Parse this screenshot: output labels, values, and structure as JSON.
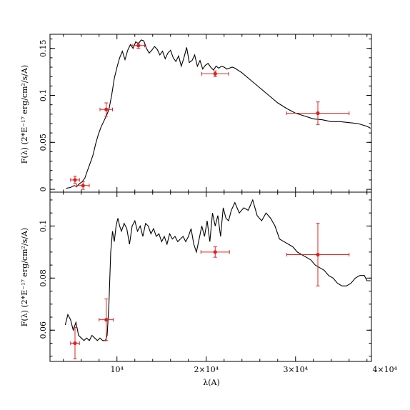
{
  "chart_data": [
    {
      "type": "line",
      "panel": "top",
      "ylabel": "F(λ) (2*E⁻¹⁷ erg/cm²/s/A)",
      "xlim": [
        2500,
        38500
      ],
      "ylim": [
        -0.003,
        0.165
      ],
      "x_ticks": [
        10000,
        20000,
        30000,
        40000
      ],
      "y_ticks": [
        0,
        0.05,
        0.1,
        0.15
      ],
      "y_tick_labels": [
        "0",
        "0.05",
        "0.1",
        "0.15"
      ],
      "line_color": "#000000",
      "model_spectrum": {
        "x": [
          4300,
          4800,
          5200,
          5500,
          5800,
          6100,
          6400,
          6700,
          7000,
          7300,
          7600,
          7900,
          8200,
          8500,
          8800,
          9100,
          9400,
          9700,
          10000,
          10300,
          10600,
          10900,
          11200,
          11500,
          11800,
          12100,
          12400,
          12700,
          13000,
          13300,
          13600,
          13900,
          14200,
          14500,
          14800,
          15100,
          15400,
          15700,
          16000,
          16300,
          16600,
          16900,
          17200,
          17500,
          17800,
          18100,
          18400,
          18700,
          19000,
          19300,
          19600,
          19900,
          20200,
          20500,
          20800,
          21100,
          21400,
          21700,
          22000,
          22300,
          22600,
          22900,
          23200,
          24000,
          25000,
          26000,
          27000,
          28000,
          29000,
          30000,
          31000,
          32000,
          33000,
          34000,
          35000,
          36000,
          37000,
          38000,
          38400
        ],
        "y": [
          0.001,
          0.002,
          0.004,
          0.003,
          0.006,
          0.008,
          0.012,
          0.02,
          0.028,
          0.036,
          0.048,
          0.058,
          0.066,
          0.072,
          0.078,
          0.085,
          0.1,
          0.118,
          0.13,
          0.14,
          0.147,
          0.138,
          0.148,
          0.154,
          0.15,
          0.157,
          0.155,
          0.159,
          0.158,
          0.15,
          0.145,
          0.148,
          0.152,
          0.149,
          0.143,
          0.147,
          0.139,
          0.145,
          0.148,
          0.14,
          0.136,
          0.142,
          0.131,
          0.14,
          0.151,
          0.135,
          0.137,
          0.143,
          0.131,
          0.137,
          0.128,
          0.132,
          0.134,
          0.13,
          0.127,
          0.131,
          0.129,
          0.131,
          0.13,
          0.128,
          0.129,
          0.13,
          0.129,
          0.124,
          0.116,
          0.108,
          0.1,
          0.092,
          0.086,
          0.081,
          0.078,
          0.075,
          0.074,
          0.072,
          0.072,
          0.071,
          0.07,
          0.067,
          0.065
        ]
      },
      "photometry": [
        {
          "x": 5300,
          "y": 0.01,
          "xerr": 500,
          "yerr": 0.004
        },
        {
          "x": 6200,
          "y": 0.004,
          "xerr": 700,
          "yerr": 0.004
        },
        {
          "x": 8800,
          "y": 0.085,
          "xerr": 700,
          "yerr": 0.007
        },
        {
          "x": 12400,
          "y": 0.153,
          "xerr": 700,
          "yerr": 0.003
        },
        {
          "x": 21000,
          "y": 0.123,
          "xerr": 1500,
          "yerr": 0.003
        },
        {
          "x": 32500,
          "y": 0.081,
          "xerr": 3500,
          "yerr": 0.012
        }
      ]
    },
    {
      "type": "line",
      "panel": "bottom",
      "xlabel": "λ(A)",
      "ylabel": "F(λ) (2*E⁻¹⁷ erg/cm²/s/A)",
      "xlim": [
        2500,
        38500
      ],
      "ylim": [
        0.048,
        0.113
      ],
      "x_ticks": [
        10000,
        20000,
        30000,
        40000
      ],
      "x_tick_labels": [
        "10⁴",
        "2×10⁴",
        "3×10⁴",
        "4×10⁴"
      ],
      "y_ticks": [
        0.06,
        0.08,
        0.1
      ],
      "y_tick_labels": [
        "0.06",
        "0.08",
        "0.1"
      ],
      "line_color": "#000000",
      "model_spectrum": {
        "x": [
          4200,
          4500,
          4800,
          5100,
          5400,
          5700,
          6000,
          6300,
          6600,
          6900,
          7200,
          7500,
          7800,
          8100,
          8400,
          8700,
          8900,
          9100,
          9300,
          9500,
          9700,
          9900,
          10100,
          10300,
          10500,
          10800,
          11100,
          11400,
          11700,
          12000,
          12300,
          12600,
          12900,
          13200,
          13500,
          13800,
          14100,
          14400,
          14700,
          15000,
          15300,
          15600,
          15900,
          16200,
          16500,
          16800,
          17100,
          17400,
          17700,
          18000,
          18300,
          18600,
          18900,
          19200,
          19500,
          19800,
          20100,
          20400,
          20700,
          21000,
          21300,
          21600,
          21900,
          22200,
          22500,
          22800,
          23200,
          23700,
          24200,
          24700,
          25200,
          25700,
          26200,
          26700,
          27200,
          27700,
          28200,
          28700,
          29200,
          29700,
          30200,
          30700,
          31200,
          31700,
          32200,
          32700,
          33200,
          33700,
          34200,
          34700,
          35200,
          35700,
          36200,
          36700,
          37200,
          37700,
          38000,
          38400
        ],
        "y": [
          0.062,
          0.066,
          0.064,
          0.06,
          0.063,
          0.058,
          0.057,
          0.056,
          0.057,
          0.056,
          0.058,
          0.057,
          0.056,
          0.057,
          0.056,
          0.056,
          0.058,
          0.07,
          0.09,
          0.098,
          0.094,
          0.1,
          0.103,
          0.1,
          0.098,
          0.101,
          0.099,
          0.093,
          0.1,
          0.102,
          0.098,
          0.1,
          0.096,
          0.101,
          0.1,
          0.097,
          0.099,
          0.096,
          0.097,
          0.094,
          0.096,
          0.093,
          0.097,
          0.095,
          0.096,
          0.094,
          0.095,
          0.096,
          0.094,
          0.096,
          0.099,
          0.093,
          0.09,
          0.095,
          0.1,
          0.096,
          0.102,
          0.094,
          0.105,
          0.1,
          0.104,
          0.096,
          0.107,
          0.103,
          0.102,
          0.106,
          0.109,
          0.105,
          0.107,
          0.106,
          0.11,
          0.104,
          0.102,
          0.105,
          0.103,
          0.1,
          0.095,
          0.094,
          0.093,
          0.092,
          0.09,
          0.089,
          0.088,
          0.087,
          0.085,
          0.084,
          0.083,
          0.081,
          0.08,
          0.078,
          0.077,
          0.077,
          0.078,
          0.08,
          0.081,
          0.081,
          0.079,
          0.079
        ]
      },
      "photometry": [
        {
          "x": 5300,
          "y": 0.055,
          "xerr": 500,
          "yerr": 0.006
        },
        {
          "x": 8800,
          "y": 0.064,
          "xerr": 800,
          "yerr": 0.008
        },
        {
          "x": 21000,
          "y": 0.09,
          "xerr": 1600,
          "yerr": 0.002
        },
        {
          "x": 32500,
          "y": 0.089,
          "xerr": 3500,
          "yerr": 0.012
        }
      ]
    }
  ],
  "colors": {
    "model_line": "#000000",
    "photometry": "#e02020",
    "axes": "#000000"
  }
}
